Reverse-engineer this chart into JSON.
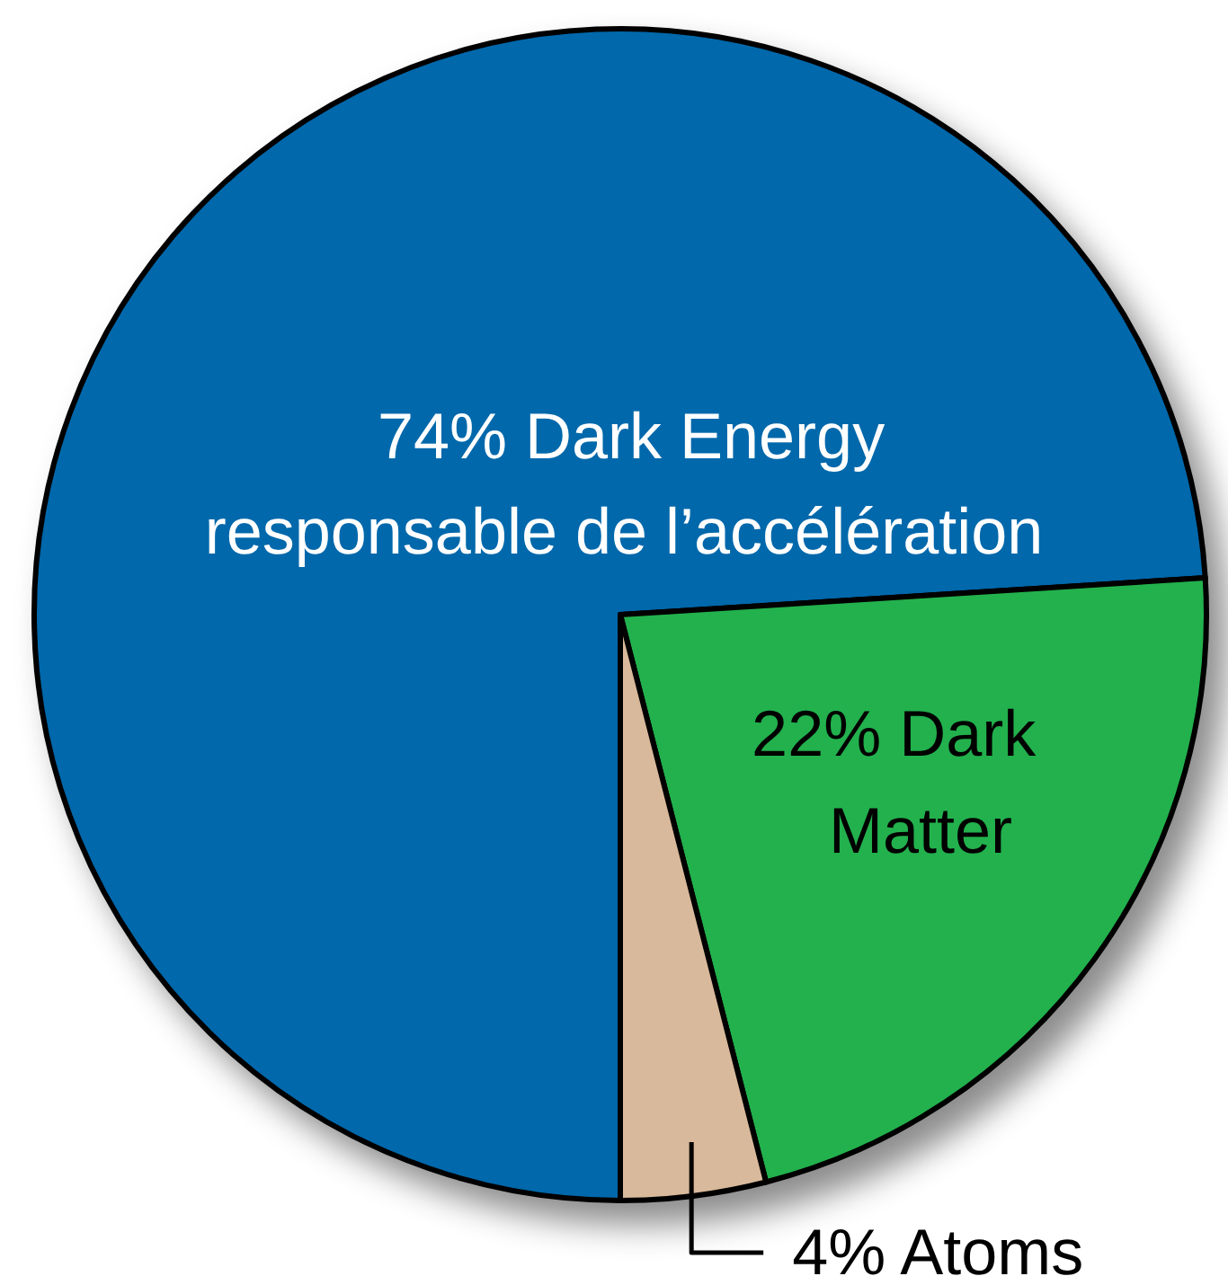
{
  "chart_data": {
    "type": "pie",
    "categories": [
      "Dark Energy",
      "Dark Matter",
      "Atoms"
    ],
    "values": [
      74,
      22,
      4
    ],
    "colors": [
      "#0068ab",
      "#23b14d",
      "#d9b99b"
    ],
    "value_labels": [
      "74%",
      "22%",
      "4%"
    ],
    "annotations": [
      "responsable de l’accélération"
    ]
  }
}
